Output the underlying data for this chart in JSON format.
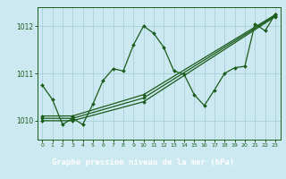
{
  "title": "Graphe pression niveau de la mer (hPa)",
  "bg_color": "#cce8f0",
  "plot_bg_color": "#cce8f0",
  "grid_color": "#aacfdc",
  "line_color": "#1a5c1a",
  "marker_color": "#1a5c1a",
  "label_bg": "#2d6e2d",
  "label_fg": "#ffffff",
  "ylim": [
    1009.6,
    1012.4
  ],
  "xlim": [
    -0.5,
    23.5
  ],
  "yticks": [
    1010,
    1011,
    1012
  ],
  "xticks": [
    0,
    1,
    2,
    3,
    4,
    5,
    6,
    7,
    8,
    9,
    10,
    11,
    12,
    13,
    14,
    15,
    16,
    17,
    18,
    19,
    20,
    21,
    22,
    23
  ],
  "series1_x": [
    0,
    1,
    2,
    3,
    4,
    5,
    6,
    7,
    8,
    9,
    10,
    11,
    12,
    13,
    14,
    15,
    16,
    17,
    18,
    19,
    20,
    21,
    22,
    23
  ],
  "series1_y": [
    1010.75,
    1010.45,
    1009.92,
    1010.05,
    1009.92,
    1010.35,
    1010.85,
    1011.1,
    1011.05,
    1011.6,
    1012.0,
    1011.85,
    1011.55,
    1011.05,
    1010.98,
    1010.55,
    1010.32,
    1010.65,
    1011.0,
    1011.12,
    1011.15,
    1012.05,
    1011.9,
    1012.25
  ],
  "series2_x": [
    0,
    3,
    10,
    23
  ],
  "series2_y": [
    1010.0,
    1010.0,
    1010.4,
    1012.2
  ],
  "series3_x": [
    0,
    3,
    10,
    23
  ],
  "series3_y": [
    1010.05,
    1010.05,
    1010.48,
    1012.22
  ],
  "series4_x": [
    0,
    3,
    10,
    23
  ],
  "series4_y": [
    1010.1,
    1010.1,
    1010.55,
    1012.24
  ]
}
